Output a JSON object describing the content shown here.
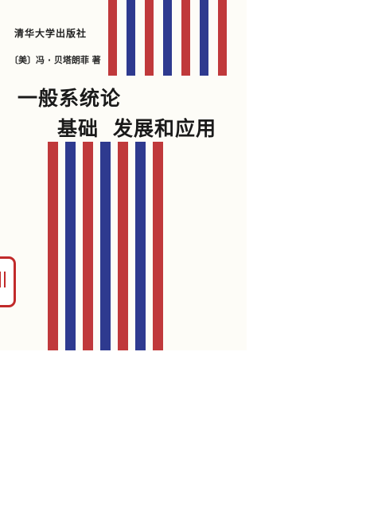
{
  "publisher": "清华大学出版社",
  "author": "〔美〕冯 · 贝塔朗菲 著",
  "title": {
    "line1": "一般系统论",
    "line2_part1": "基础",
    "line2_part2": "发展和应用"
  },
  "colors": {
    "red": "#c0393b",
    "blue": "#2e3a8f",
    "paper": "#fdfcf7"
  }
}
